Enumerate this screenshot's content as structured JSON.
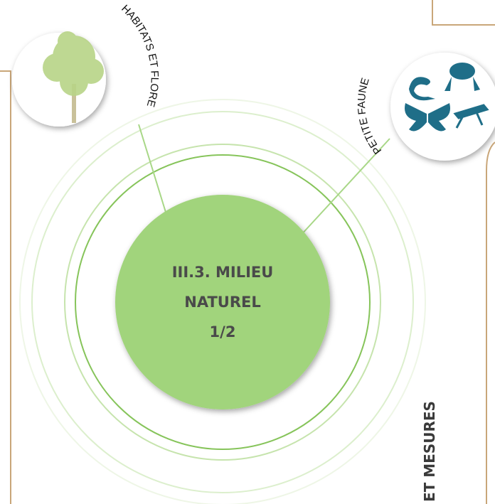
{
  "diagram": {
    "center": {
      "lines": [
        "III.3. MILIEU",
        "NATUREL",
        "1/2"
      ]
    },
    "nodes": [
      {
        "label": "HABITATS ET FLORE"
      },
      {
        "label": "PETITE FAUNE"
      }
    ],
    "side_label": "ET MESURES"
  }
}
